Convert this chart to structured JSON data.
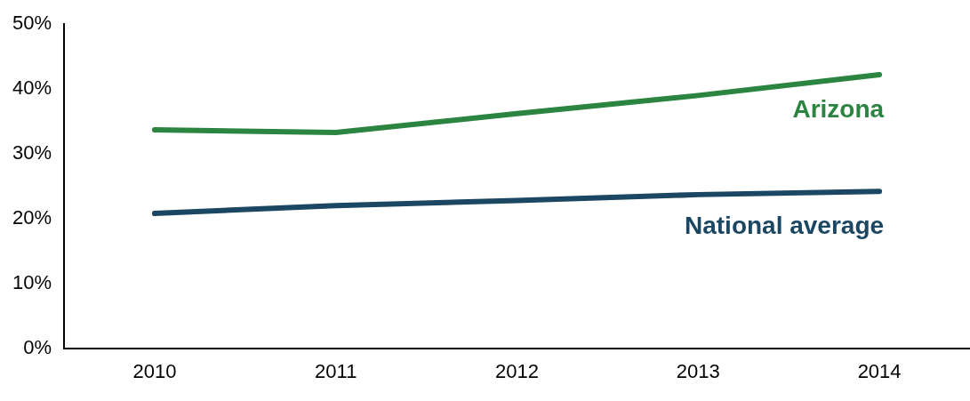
{
  "chart_data": {
    "type": "line",
    "categories": [
      "2010",
      "2011",
      "2012",
      "2013",
      "2014"
    ],
    "series": [
      {
        "name": "Arizona",
        "color": "#2b8540",
        "values": [
          33.7,
          33.3,
          36.2,
          39.0,
          42.2
        ]
      },
      {
        "name": "National average",
        "color": "#1c4763",
        "values": [
          20.8,
          22.0,
          22.8,
          23.7,
          24.2
        ]
      }
    ],
    "ylim": [
      0,
      50
    ],
    "yticks": [
      {
        "value": 0,
        "label": "0%"
      },
      {
        "value": 10,
        "label": "10%"
      },
      {
        "value": 20,
        "label": "20%"
      },
      {
        "value": 30,
        "label": "30%"
      },
      {
        "value": 40,
        "label": "40%"
      },
      {
        "value": 50,
        "label": "50%"
      }
    ],
    "grid": false,
    "legend": false,
    "marker": "none",
    "line_style": "solid"
  }
}
